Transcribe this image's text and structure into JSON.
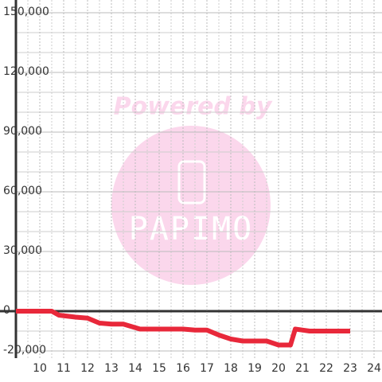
{
  "chart_data": {
    "type": "line",
    "watermark": {
      "top": "Powered by",
      "brand": "PAPIMO"
    },
    "x": [
      9,
      10.5,
      10.8,
      11.5,
      12,
      12.5,
      13,
      13.5,
      14.2,
      15,
      16,
      16.5,
      17,
      17.5,
      18,
      18.5,
      19,
      19.5,
      20,
      20.5,
      20.7,
      21.3,
      23
    ],
    "series": [
      {
        "color": "#e8283a",
        "values": [
          0,
          0,
          -2000,
          -3000,
          -3500,
          -6000,
          -6500,
          -6500,
          -9000,
          -9000,
          -9000,
          -9500,
          -9500,
          -12000,
          -14000,
          -15000,
          -15000,
          -15000,
          -17000,
          -17000,
          -9000,
          -10000,
          -10000
        ]
      }
    ],
    "xlim": [
      9,
      24.3
    ],
    "xticks": [
      10,
      11,
      12,
      13,
      14,
      15,
      16,
      17,
      18,
      19,
      20,
      21,
      22,
      23,
      24
    ],
    "x_minor_grid": [
      9.5,
      10.5,
      11.5,
      12.5,
      13.5,
      14.5,
      15.5,
      16.5,
      17.5,
      18.5,
      19.5,
      20.5,
      21.5,
      22.5,
      23.5
    ],
    "ylim": [
      -20000,
      150000
    ],
    "yticks": [
      {
        "value": -20000,
        "label": "-20,000"
      },
      0,
      {
        "value": 30000,
        "label": "30,000"
      },
      {
        "value": 60000,
        "label": "60,000"
      },
      {
        "value": 90000,
        "label": "90,000"
      },
      {
        "value": 120000,
        "label": "120,000"
      },
      {
        "value": 150000,
        "label": "150,000"
      }
    ],
    "y_minor_grid": [
      -10000,
      10000,
      20000,
      40000,
      50000,
      70000,
      80000,
      100000,
      110000,
      130000,
      140000
    ],
    "grid": true
  }
}
